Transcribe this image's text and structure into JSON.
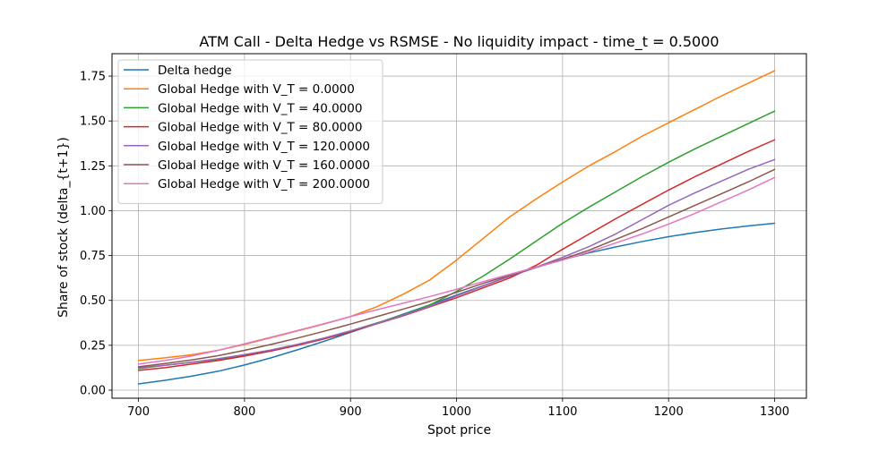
{
  "chart_data": {
    "type": "line",
    "title": "ATM Call - Delta Hedge vs RSMSE - No liquidity impact - time_t = 0.5000",
    "xlabel": "Spot price",
    "ylabel": "Share of stock (delta_{t+1})",
    "xlim": [
      675,
      1330
    ],
    "ylim": [
      -0.045,
      1.875
    ],
    "xticks": [
      700,
      800,
      900,
      1000,
      1100,
      1200,
      1300
    ],
    "xtick_labels": [
      "700",
      "800",
      "900",
      "1000",
      "1100",
      "1200",
      "1300"
    ],
    "yticks": [
      0.0,
      0.25,
      0.5,
      0.75,
      1.0,
      1.25,
      1.5,
      1.75
    ],
    "ytick_labels": [
      "0.00",
      "0.25",
      "0.50",
      "0.75",
      "1.00",
      "1.25",
      "1.50",
      "1.75"
    ],
    "grid": true,
    "legend_position": "upper-left",
    "x": [
      700,
      725,
      750,
      775,
      800,
      825,
      850,
      875,
      900,
      925,
      950,
      975,
      1000,
      1025,
      1050,
      1075,
      1100,
      1125,
      1150,
      1175,
      1200,
      1225,
      1250,
      1275,
      1300
    ],
    "series": [
      {
        "name": "Delta hedge",
        "color": "#1f77b4",
        "values": [
          0.035,
          0.055,
          0.078,
          0.105,
          0.14,
          0.18,
          0.225,
          0.272,
          0.322,
          0.372,
          0.424,
          0.476,
          0.53,
          0.582,
          0.634,
          0.683,
          0.727,
          0.765,
          0.798,
          0.828,
          0.855,
          0.878,
          0.898,
          0.915,
          0.93
        ]
      },
      {
        "name": "Global Hedge with V_T = 0.0000",
        "color": "#ff7f0e",
        "values": [
          0.165,
          0.18,
          0.197,
          0.222,
          0.255,
          0.292,
          0.33,
          0.368,
          0.41,
          0.465,
          0.535,
          0.615,
          0.725,
          0.845,
          0.965,
          1.065,
          1.16,
          1.25,
          1.33,
          1.415,
          1.49,
          1.565,
          1.64,
          1.71,
          1.78
        ]
      },
      {
        "name": "Global Hedge with V_T = 40.0000",
        "color": "#2ca02c",
        "values": [
          0.12,
          0.138,
          0.155,
          0.172,
          0.195,
          0.222,
          0.255,
          0.29,
          0.33,
          0.375,
          0.42,
          0.475,
          0.55,
          0.635,
          0.73,
          0.83,
          0.93,
          1.02,
          1.105,
          1.19,
          1.27,
          1.345,
          1.415,
          1.485,
          1.555
        ]
      },
      {
        "name": "Global Hedge with V_T = 80.0000",
        "color": "#d62728",
        "values": [
          0.11,
          0.125,
          0.145,
          0.165,
          0.19,
          0.218,
          0.25,
          0.285,
          0.325,
          0.37,
          0.415,
          0.465,
          0.515,
          0.57,
          0.625,
          0.695,
          0.785,
          0.87,
          0.955,
          1.035,
          1.115,
          1.19,
          1.26,
          1.33,
          1.395
        ]
      },
      {
        "name": "Global Hedge with V_T = 120.0000",
        "color": "#9467bd",
        "values": [
          0.125,
          0.138,
          0.155,
          0.175,
          0.198,
          0.224,
          0.255,
          0.29,
          0.33,
          0.372,
          0.418,
          0.468,
          0.525,
          0.58,
          0.635,
          0.685,
          0.74,
          0.8,
          0.87,
          0.95,
          1.03,
          1.1,
          1.165,
          1.23,
          1.285
        ]
      },
      {
        "name": "Global Hedge with V_T = 160.0000",
        "color": "#8c564b",
        "values": [
          0.13,
          0.148,
          0.168,
          0.192,
          0.222,
          0.255,
          0.29,
          0.328,
          0.368,
          0.41,
          0.452,
          0.495,
          0.545,
          0.595,
          0.64,
          0.685,
          0.73,
          0.78,
          0.84,
          0.9,
          0.965,
          1.03,
          1.095,
          1.16,
          1.23
        ]
      },
      {
        "name": "Global Hedge with V_T = 200.0000",
        "color": "#e377c2",
        "values": [
          0.145,
          0.165,
          0.19,
          0.222,
          0.258,
          0.295,
          0.332,
          0.37,
          0.41,
          0.448,
          0.485,
          0.522,
          0.562,
          0.605,
          0.645,
          0.685,
          0.725,
          0.77,
          0.82,
          0.87,
          0.925,
          0.985,
          1.05,
          1.115,
          1.185
        ]
      }
    ]
  }
}
